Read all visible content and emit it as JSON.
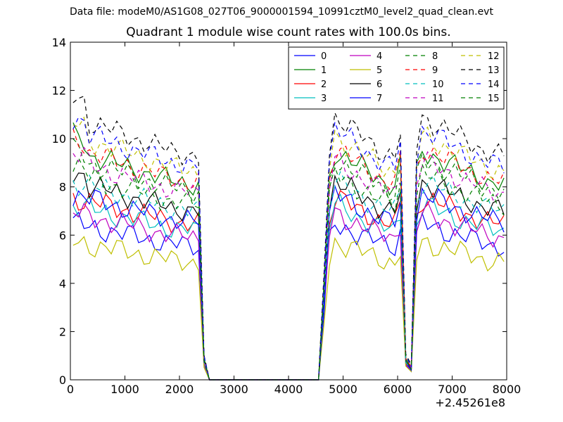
{
  "figure": {
    "suptitle": "Data file: modeM0/AS1G08_027T06_9000001594_10991cztM0_level2_quad_clean.evt"
  },
  "chart_data": {
    "type": "line",
    "title": "Quadrant 1 module wise count rates with 100.0s bins.",
    "xlabel": "",
    "ylabel": "",
    "x_offset_label": "+2.45261e8",
    "xlim": [
      0,
      8000
    ],
    "ylim": [
      0,
      14
    ],
    "x_ticks": [
      0,
      1000,
      2000,
      3000,
      4000,
      5000,
      6000,
      7000,
      8000
    ],
    "y_ticks": [
      0,
      2,
      4,
      6,
      8,
      10,
      12,
      14
    ],
    "grid": false,
    "legend": {
      "placement": "top-right",
      "columns": 4
    },
    "x": [
      50,
      150,
      250,
      350,
      450,
      550,
      650,
      750,
      850,
      950,
      1050,
      1150,
      1250,
      1350,
      1450,
      1550,
      1650,
      1750,
      1850,
      1950,
      2050,
      2150,
      2250,
      2350,
      2450,
      2550,
      2650,
      2750,
      2850,
      2950,
      3050,
      3150,
      3250,
      3350,
      3450,
      3550,
      3650,
      3750,
      3850,
      3950,
      4050,
      4150,
      4250,
      4350,
      4450,
      4550,
      4650,
      4750,
      4850,
      4950,
      5050,
      5150,
      5250,
      5350,
      5450,
      5550,
      5650,
      5750,
      5850,
      5950,
      6050,
      6150,
      6250,
      6350,
      6450,
      6550,
      6650,
      6750,
      6850,
      6950,
      7050,
      7150,
      7250,
      7350,
      7450,
      7550,
      7650,
      7750,
      7850,
      7950
    ],
    "series": [
      {
        "name": "0",
        "color": "#0000ff",
        "dash": false,
        "base": 6.0,
        "bias": 0.0,
        "phase": 0.3
      },
      {
        "name": "1",
        "color": "#008000",
        "dash": false,
        "base": 8.8,
        "bias": 0.6,
        "phase": 1.1
      },
      {
        "name": "2",
        "color": "#ff0000",
        "dash": false,
        "base": 7.0,
        "bias": 0.0,
        "phase": 2.0
      },
      {
        "name": "3",
        "color": "#00bfbf",
        "dash": false,
        "base": 6.7,
        "bias": 0.0,
        "phase": 2.7
      },
      {
        "name": "4",
        "color": "#bf00bf",
        "dash": false,
        "base": 6.4,
        "bias": 0.0,
        "phase": 3.4
      },
      {
        "name": "5",
        "color": "#bfbf00",
        "dash": false,
        "base": 5.3,
        "bias": 0.0,
        "phase": 4.2
      },
      {
        "name": "6",
        "color": "#000000",
        "dash": false,
        "base": 7.6,
        "bias": 0.4,
        "phase": 4.9
      },
      {
        "name": "7",
        "color": "#0000ff",
        "dash": false,
        "base": 7.1,
        "bias": 0.0,
        "phase": 5.6
      },
      {
        "name": "8",
        "color": "#008000",
        "dash": true,
        "base": 8.5,
        "bias": 0.3,
        "phase": 0.8
      },
      {
        "name": "9",
        "color": "#ff0000",
        "dash": true,
        "base": 8.9,
        "bias": 0.4,
        "phase": 1.6
      },
      {
        "name": "10",
        "color": "#00bfbf",
        "dash": true,
        "base": 7.6,
        "bias": 0.0,
        "phase": 2.3
      },
      {
        "name": "11",
        "color": "#bf00bf",
        "dash": true,
        "base": 8.4,
        "bias": 0.3,
        "phase": 3.0
      },
      {
        "name": "12",
        "color": "#bfbf00",
        "dash": true,
        "base": 9.4,
        "bias": 0.4,
        "phase": 3.8
      },
      {
        "name": "13",
        "color": "#000000",
        "dash": true,
        "base": 10.1,
        "bias": 0.8,
        "phase": 4.5
      },
      {
        "name": "14",
        "color": "#0000ff",
        "dash": true,
        "base": 9.6,
        "bias": 0.5,
        "phase": 5.2
      },
      {
        "name": "15",
        "color": "#008000",
        "dash": true,
        "base": 7.9,
        "bias": 0.3,
        "phase": 6.0
      }
    ],
    "segments": [
      {
        "from": 50,
        "to": 2350,
        "level": 1.0
      },
      {
        "from": 4850,
        "to": 5950,
        "level": 1.0
      },
      {
        "from": 6450,
        "to": 7950,
        "level": 1.0
      }
    ],
    "transitions": [
      {
        "x": 2450,
        "level": 0.1
      },
      {
        "x": 2550,
        "level": 0.0
      },
      {
        "x": 4550,
        "level": 0.0
      },
      {
        "x": 4650,
        "level": 0.45
      },
      {
        "x": 4750,
        "level": 0.95
      },
      {
        "x": 6050,
        "level": 1.02
      },
      {
        "x": 6150,
        "level": 0.1
      },
      {
        "x": 6250,
        "level": 0.06
      },
      {
        "x": 6350,
        "level": 0.97
      }
    ]
  }
}
